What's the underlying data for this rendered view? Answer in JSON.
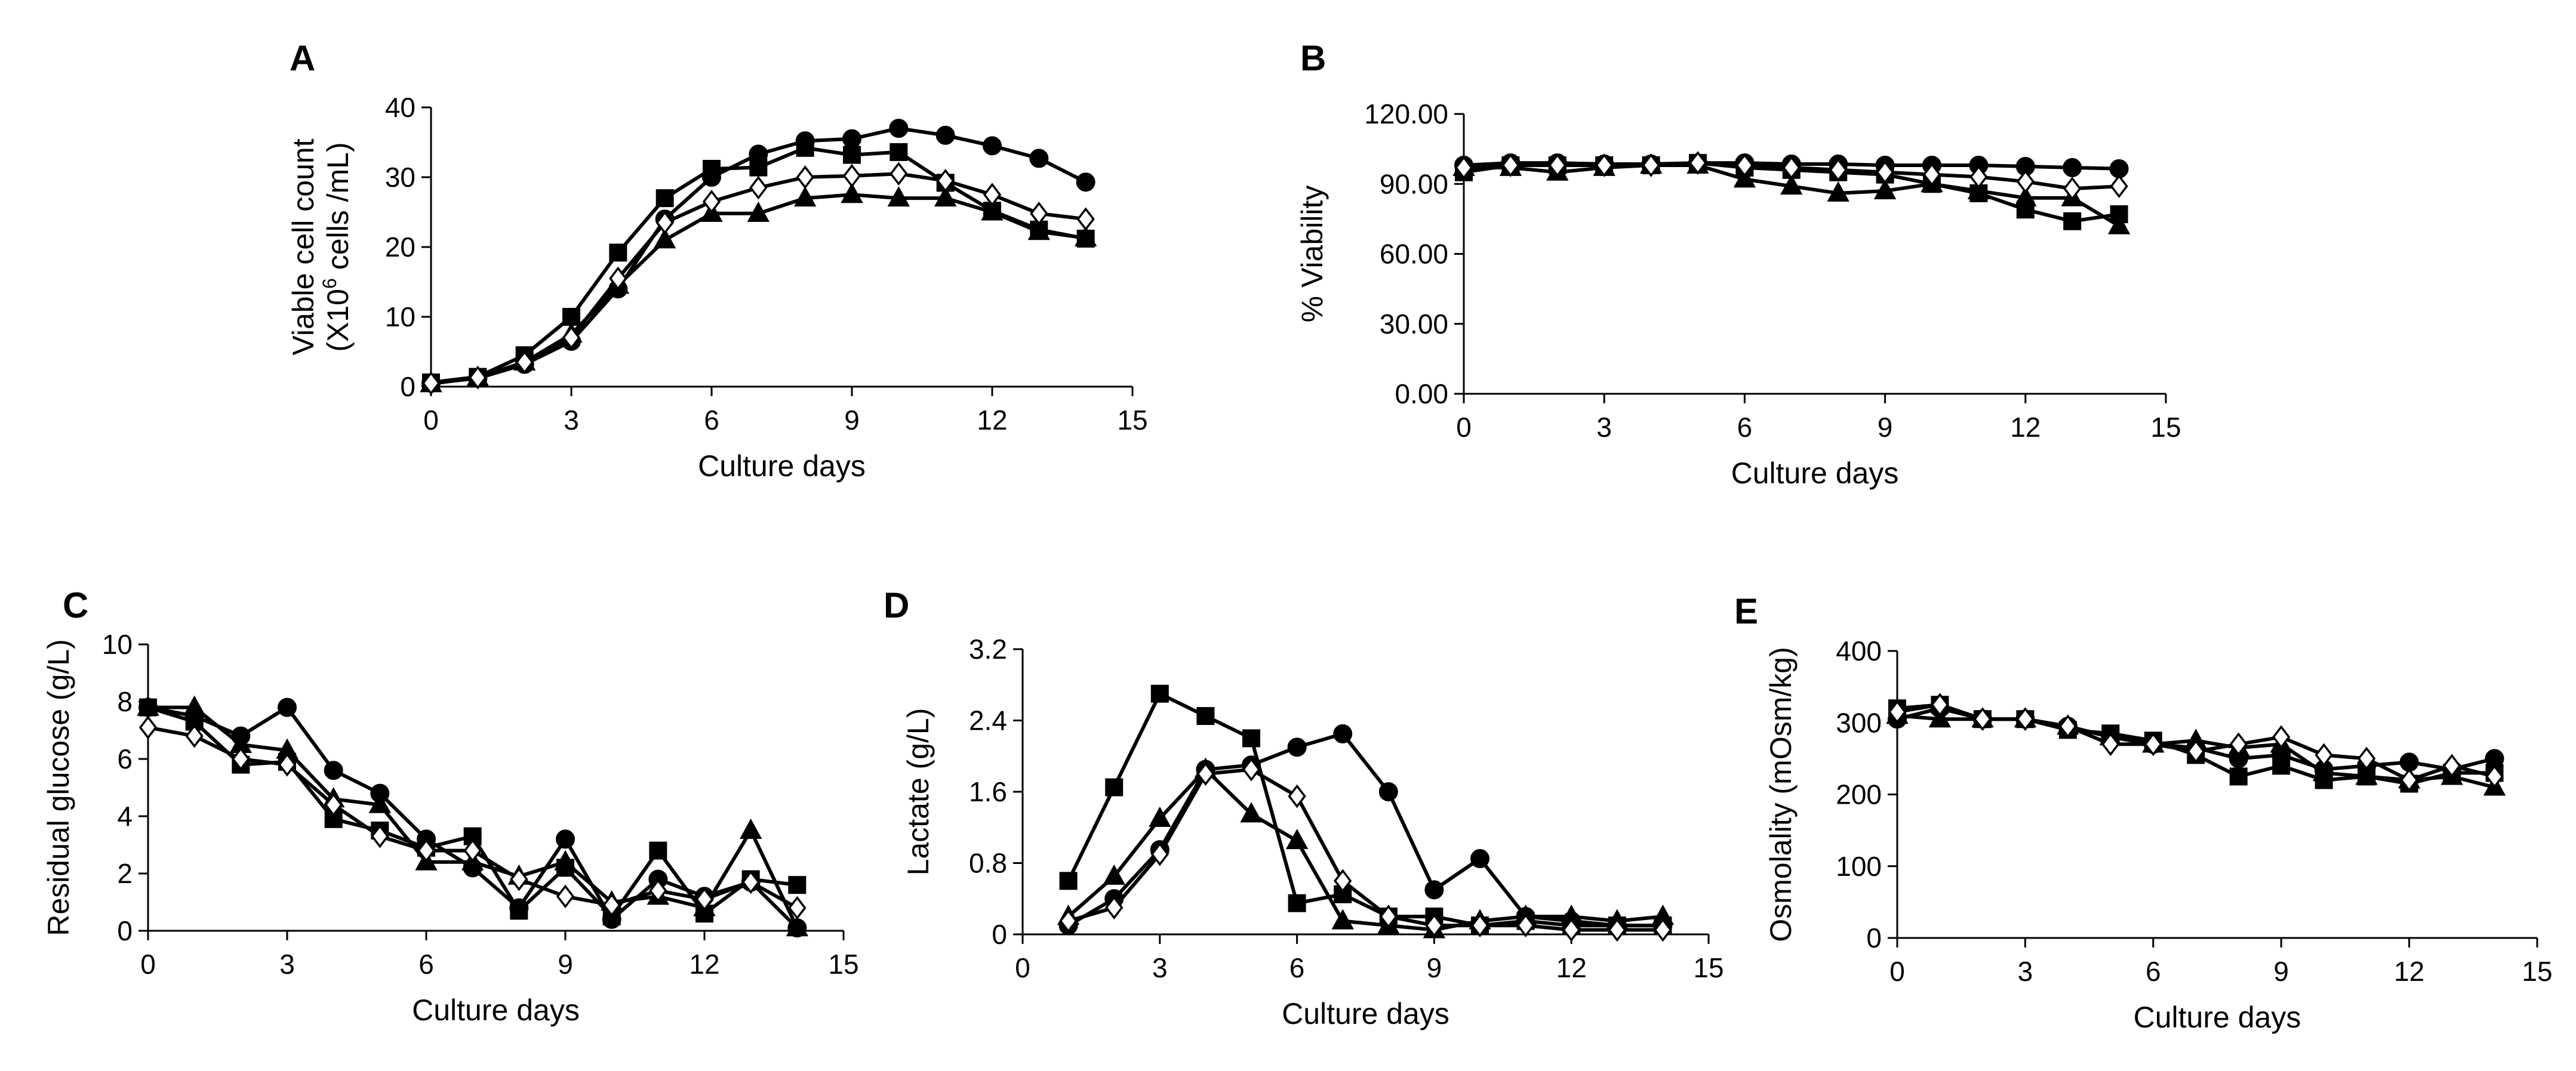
{
  "figure": {
    "panels": [
      "A",
      "B",
      "C",
      "D",
      "E"
    ]
  },
  "chart_data": [
    {
      "id": "A",
      "type": "line",
      "title": "",
      "xlabel": "Culture days",
      "ylabel": [
        "Viable cell count",
        "(X10",
        "6",
        " cells /mL)"
      ],
      "xlim": [
        0,
        15
      ],
      "xticks": [
        0,
        3,
        6,
        9,
        12,
        15
      ],
      "xtick_labels": [
        "0",
        "3",
        "6",
        "9",
        "12",
        "15"
      ],
      "ylim": [
        0,
        40
      ],
      "yticks": [
        0,
        10,
        20,
        30,
        40
      ],
      "ytick_labels": [
        "0",
        "10",
        "20",
        "30",
        "40"
      ],
      "grid": false,
      "x": [
        0,
        1,
        2,
        3,
        4,
        5,
        6,
        7,
        8,
        9,
        10,
        11,
        12,
        13,
        14
      ],
      "series": [
        {
          "name": "circle",
          "marker": "circle",
          "values": [
            0.5,
            1.2,
            3.2,
            6.5,
            14,
            24,
            30,
            33.3,
            35.2,
            35.5,
            37,
            36,
            34.5,
            32.7,
            29.3
          ]
        },
        {
          "name": "square",
          "marker": "square",
          "values": [
            0.6,
            1.4,
            4.5,
            10,
            19.2,
            27,
            31.2,
            31.4,
            34.2,
            33.2,
            33.6,
            29.2,
            25.2,
            22.5,
            21.2
          ]
        },
        {
          "name": "triangle",
          "marker": "triangle",
          "values": [
            0.4,
            1.3,
            3.5,
            7.5,
            14.5,
            21,
            24.8,
            24.8,
            27,
            27.5,
            27,
            27,
            25,
            22.2,
            21.3
          ]
        },
        {
          "name": "diamond",
          "marker": "diamond",
          "values": [
            0.5,
            1.3,
            3.5,
            7,
            15.5,
            23.5,
            26.5,
            28.5,
            30,
            30.2,
            30.5,
            29.5,
            27.5,
            24.8,
            24
          ]
        }
      ]
    },
    {
      "id": "B",
      "type": "line",
      "title": "",
      "xlabel": "Culture days",
      "ylabel": [
        "% Viability"
      ],
      "xlim": [
        0,
        15
      ],
      "xticks": [
        0,
        3,
        6,
        9,
        12,
        15
      ],
      "xtick_labels": [
        "0",
        "3",
        "6",
        "9",
        "12",
        "15"
      ],
      "ylim": [
        0,
        120
      ],
      "yticks": [
        0,
        30,
        60,
        90,
        120
      ],
      "ytick_labels": [
        "0.00",
        "30.00",
        "60.00",
        "90.00",
        "120.00"
      ],
      "grid": false,
      "x": [
        0,
        1,
        2,
        3,
        4,
        5,
        6,
        7,
        8,
        9,
        10,
        11,
        12,
        13,
        14
      ],
      "series": [
        {
          "name": "circle",
          "marker": "circle",
          "values": [
            98,
            99,
            99,
            98.5,
            98.5,
            99,
            99,
            98.5,
            98.5,
            98,
            98,
            98,
            97.5,
            97,
            96.5
          ]
        },
        {
          "name": "square",
          "marker": "square",
          "values": [
            95,
            98,
            98,
            98,
            98,
            99,
            97,
            96,
            95,
            94,
            90,
            86,
            79,
            74,
            77
          ]
        },
        {
          "name": "triangle",
          "marker": "triangle",
          "values": [
            97,
            97,
            95,
            97,
            98,
            98,
            92,
            89,
            86,
            87,
            90,
            87,
            84,
            84,
            72
          ]
        },
        {
          "name": "diamond",
          "marker": "diamond",
          "values": [
            97,
            98,
            98,
            98,
            98,
            99,
            98,
            97,
            96,
            95,
            94,
            93,
            91,
            88,
            89
          ]
        }
      ]
    },
    {
      "id": "C",
      "type": "line",
      "title": "",
      "xlabel": "Culture days",
      "ylabel": [
        "Residual glucose (g/L)"
      ],
      "xlim": [
        0,
        15
      ],
      "xticks": [
        0,
        3,
        6,
        9,
        12,
        15
      ],
      "xtick_labels": [
        "0",
        "3",
        "6",
        "9",
        "12",
        "15"
      ],
      "ylim": [
        0,
        10
      ],
      "yticks": [
        0,
        2,
        4,
        6,
        8,
        10
      ],
      "ytick_labels": [
        "0",
        "2",
        "4",
        "6",
        "8",
        "10"
      ],
      "grid": false,
      "x": [
        0,
        1,
        2,
        3,
        4,
        5,
        6,
        7,
        8,
        9,
        10,
        11,
        12,
        13,
        14
      ],
      "series": [
        {
          "name": "circle",
          "marker": "circle",
          "values": [
            7.8,
            7.5,
            6.8,
            7.8,
            5.6,
            4.8,
            3.2,
            2.2,
            0.8,
            3.2,
            0.4,
            1.8,
            1.2,
            1.7,
            0.1
          ]
        },
        {
          "name": "square",
          "marker": "square",
          "values": [
            7.8,
            7.3,
            5.8,
            5.9,
            3.9,
            3.5,
            2.9,
            3.3,
            0.7,
            2.2,
            0.5,
            2.8,
            0.6,
            1.8,
            1.6
          ]
        },
        {
          "name": "triangle",
          "marker": "triangle",
          "values": [
            7.8,
            7.8,
            6.5,
            6.3,
            4.6,
            4.4,
            2.4,
            2.4,
            1.9,
            2.4,
            1.0,
            1.2,
            0.8,
            3.5,
            0.1
          ]
        },
        {
          "name": "diamond",
          "marker": "diamond",
          "values": [
            7.1,
            6.8,
            6.0,
            5.8,
            4.4,
            3.3,
            2.8,
            2.8,
            1.8,
            1.2,
            0.9,
            1.4,
            1.1,
            1.7,
            0.8
          ]
        }
      ]
    },
    {
      "id": "D",
      "type": "line",
      "title": "",
      "xlabel": "Culture days",
      "ylabel": [
        "Lactate (g/L)"
      ],
      "xlim": [
        0,
        15
      ],
      "xticks": [
        0,
        3,
        6,
        9,
        12,
        15
      ],
      "xtick_labels": [
        "0",
        "3",
        "6",
        "9",
        "12",
        "15"
      ],
      "ylim": [
        0,
        3.2
      ],
      "yticks": [
        0,
        0.8,
        1.6,
        2.4,
        3.2
      ],
      "ytick_labels": [
        "0",
        "0.8",
        "1.6",
        "2.4",
        "3.2"
      ],
      "grid": false,
      "x": [
        1,
        2,
        3,
        4,
        5,
        6,
        7,
        8,
        9,
        10,
        11,
        12,
        13,
        14
      ],
      "series": [
        {
          "name": "circle",
          "marker": "circle",
          "values": [
            0.1,
            0.4,
            0.95,
            1.85,
            1.9,
            2.1,
            2.25,
            1.6,
            0.5,
            0.85,
            0.2,
            0.15,
            0.1,
            0.1
          ]
        },
        {
          "name": "square",
          "marker": "square",
          "values": [
            0.6,
            1.65,
            2.7,
            2.45,
            2.2,
            0.35,
            0.45,
            0.2,
            0.2,
            0.1,
            0.15,
            0.1,
            0.1,
            0.1
          ]
        },
        {
          "name": "triangle",
          "marker": "triangle",
          "values": [
            0.2,
            0.65,
            1.3,
            1.85,
            1.35,
            1.05,
            0.15,
            0.1,
            0.05,
            0.15,
            0.2,
            0.2,
            0.15,
            0.2
          ]
        },
        {
          "name": "diamond",
          "marker": "diamond",
          "values": [
            0.15,
            0.3,
            0.9,
            1.8,
            1.85,
            1.55,
            0.6,
            0.2,
            0.1,
            0.1,
            0.1,
            0.05,
            0.05,
            0.05
          ]
        }
      ]
    },
    {
      "id": "E",
      "type": "line",
      "title": "",
      "xlabel": "Culture days",
      "ylabel": [
        "Osmolality  (mOsm/kg)"
      ],
      "xlim": [
        0,
        15
      ],
      "xticks": [
        0,
        3,
        6,
        9,
        12,
        15
      ],
      "xtick_labels": [
        "0",
        "3",
        "6",
        "9",
        "12",
        "15"
      ],
      "ylim": [
        0,
        400
      ],
      "yticks": [
        0,
        100,
        200,
        300,
        400
      ],
      "ytick_labels": [
        "0",
        "100",
        "200",
        "300",
        "400"
      ],
      "grid": false,
      "x": [
        0,
        1,
        2,
        3,
        4,
        5,
        6,
        7,
        8,
        9,
        10,
        11,
        12,
        13,
        14
      ],
      "series": [
        {
          "name": "circle",
          "marker": "circle",
          "values": [
            305,
            320,
            305,
            305,
            295,
            280,
            270,
            265,
            250,
            255,
            235,
            240,
            245,
            235,
            250
          ]
        },
        {
          "name": "square",
          "marker": "square",
          "values": [
            320,
            325,
            305,
            305,
            290,
            285,
            275,
            255,
            225,
            240,
            220,
            225,
            215,
            230,
            230
          ]
        },
        {
          "name": "triangle",
          "marker": "triangle",
          "values": [
            310,
            305,
            305,
            305,
            295,
            280,
            270,
            275,
            265,
            270,
            230,
            225,
            220,
            225,
            210
          ]
        },
        {
          "name": "diamond",
          "marker": "diamond",
          "values": [
            315,
            325,
            305,
            305,
            295,
            270,
            270,
            260,
            270,
            280,
            255,
            250,
            220,
            240,
            225
          ]
        }
      ]
    }
  ]
}
